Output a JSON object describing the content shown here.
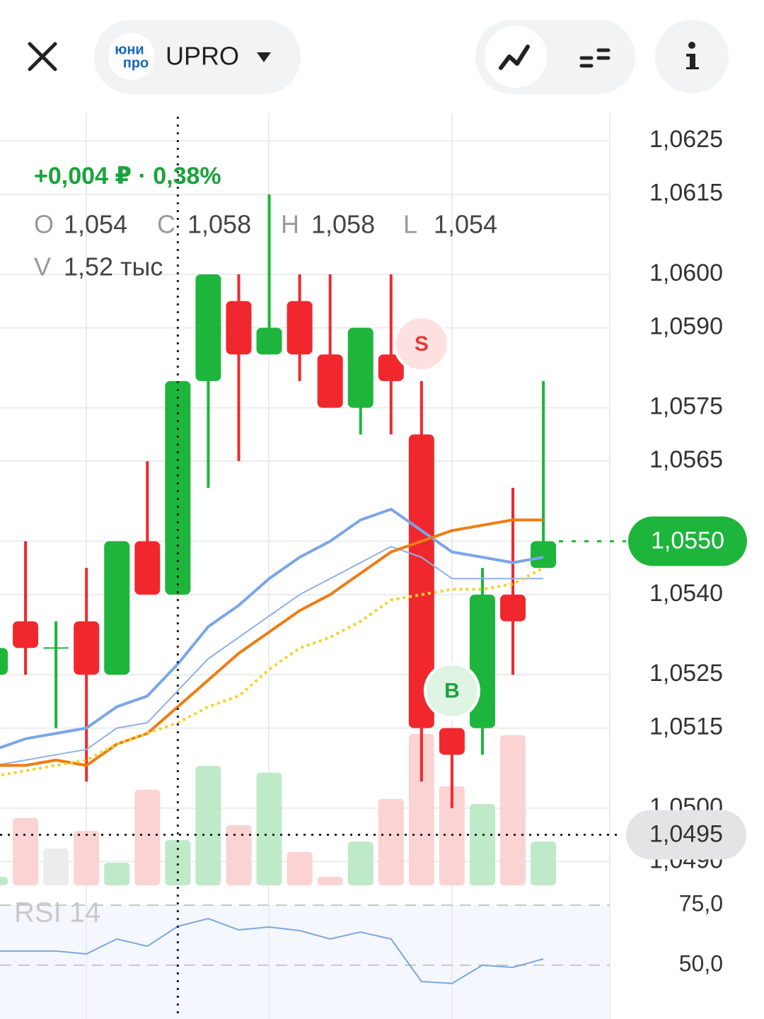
{
  "header": {
    "logo_top": "юни",
    "logo_bottom": "про",
    "ticker": "UPRO"
  },
  "chart_data": {
    "type": "candlestick",
    "change_label": "+0,004 ₽ · 0,38%",
    "legend": [
      {
        "key": "O",
        "value": "1,054"
      },
      {
        "key": "C",
        "value": "1,058"
      },
      {
        "key": "H",
        "value": "1,058"
      },
      {
        "key": "L",
        "value": "1,054"
      },
      {
        "key": "V",
        "value": "1,52 тыс"
      }
    ],
    "open": [
      1.0525,
      1.0535,
      1.053,
      1.0535,
      1.0525,
      1.055,
      1.054,
      1.058,
      1.0595,
      1.0585,
      1.0595,
      1.0585,
      1.0575,
      1.0585,
      1.057,
      1.0515,
      1.0515,
      1.054,
      1.0545
    ],
    "high": [
      1.053,
      1.055,
      1.0535,
      1.0545,
      1.055,
      1.0565,
      1.058,
      1.06,
      1.06,
      1.0615,
      1.06,
      1.06,
      1.059,
      1.06,
      1.058,
      1.0515,
      1.0545,
      1.056,
      1.058
    ],
    "low": [
      1.0525,
      1.0525,
      1.0515,
      1.0505,
      1.0525,
      1.054,
      1.054,
      1.056,
      1.0565,
      1.0585,
      1.058,
      1.0575,
      1.057,
      1.057,
      1.0505,
      1.05,
      1.051,
      1.0525,
      1.0545
    ],
    "close": [
      1.053,
      1.053,
      1.053,
      1.0525,
      1.055,
      1.054,
      1.058,
      1.06,
      1.0585,
      1.059,
      1.0585,
      1.0575,
      1.059,
      1.058,
      1.0515,
      1.051,
      1.054,
      1.0535,
      1.055
    ],
    "volume": [
      0.29,
      2.26,
      1.24,
      1.83,
      0.76,
      3.21,
      1.52,
      4.01,
      2.02,
      3.78,
      1.12,
      0.29,
      1.47,
      2.9,
      5.08,
      3.33,
      2.73,
      5.04,
      1.47
    ],
    "up_color": "#1db53b",
    "down_color": "#f0282d",
    "up_volume_color": "#bfeac8",
    "down_volume_color": "#fbd3d3",
    "flat_volume_color": "#ececec",
    "moving_averages": [
      {
        "color": "#7aa6e8",
        "width": 4,
        "style": "solid",
        "values": [
          1.0511,
          1.0513,
          1.0514,
          1.0515,
          1.0519,
          1.0521,
          1.0527,
          1.0534,
          1.0538,
          1.0543,
          1.0547,
          1.055,
          1.0554,
          1.0556,
          1.0552,
          1.0548,
          1.0547,
          1.0546,
          1.0547
        ]
      },
      {
        "color": "#8fb1e6",
        "width": 2,
        "style": "solid",
        "values": [
          1.0508,
          1.0509,
          1.051,
          1.0511,
          1.0515,
          1.0516,
          1.0522,
          1.0528,
          1.0532,
          1.0536,
          1.054,
          1.0543,
          1.0546,
          1.0549,
          1.0547,
          1.0543,
          1.0543,
          1.0543,
          1.0543
        ]
      },
      {
        "color": "#f07c12",
        "width": 4,
        "style": "solid",
        "values": [
          1.0508,
          1.0508,
          1.0509,
          1.0508,
          1.0512,
          1.0514,
          1.0519,
          1.0524,
          1.0529,
          1.0533,
          1.0537,
          1.054,
          1.0544,
          1.0548,
          1.055,
          1.0552,
          1.0553,
          1.0554,
          1.0554
        ]
      },
      {
        "color": "#f2d32c",
        "width": 4,
        "style": "dotted",
        "values": [
          1.0506,
          1.0507,
          1.0508,
          1.0509,
          1.0512,
          1.0514,
          1.0516,
          1.0519,
          1.0521,
          1.0526,
          1.053,
          1.0532,
          1.0535,
          1.0539,
          1.054,
          1.0541,
          1.0541,
          1.0542,
          1.0545
        ]
      }
    ],
    "ylim": [
      1.04858,
      1.06302
    ],
    "yticks": [
      {
        "value": 1.0625,
        "label": "1,0625"
      },
      {
        "value": 1.0615,
        "label": "1,0615"
      },
      {
        "value": 1.06,
        "label": "1,0600"
      },
      {
        "value": 1.059,
        "label": "1,0590"
      },
      {
        "value": 1.0575,
        "label": "1,0575"
      },
      {
        "value": 1.0565,
        "label": "1,0565"
      },
      {
        "value": 1.055,
        "label": "1,0550"
      },
      {
        "value": 1.054,
        "label": "1,0540"
      },
      {
        "value": 1.0525,
        "label": "1,0525"
      },
      {
        "value": 1.0515,
        "label": "1,0515"
      },
      {
        "value": 1.05,
        "label": "1,0500"
      },
      {
        "value": 1.049,
        "label": "1,0490"
      }
    ],
    "grid": true,
    "last_price": {
      "value": 1.055,
      "label": "1,0550"
    },
    "crosshair": {
      "index": 6,
      "value": 1.0495,
      "label": "1,0495"
    },
    "signals": [
      {
        "label": "S",
        "x": 14,
        "value": 1.0587,
        "color": "#e53935",
        "background": "#fde1e1"
      },
      {
        "label": "B",
        "x": 15,
        "value": 1.0522,
        "color": "#1aa33a",
        "background": "#dff4e3"
      }
    ],
    "rsi": {
      "title": "RSI 14",
      "color": "#7ba7e0",
      "values": [
        55.9,
        55.9,
        55.9,
        54.7,
        60.9,
        57.9,
        66.2,
        69.4,
        64.7,
        65.9,
        64.4,
        60.9,
        63.8,
        60.9,
        43.2,
        42.4,
        50.0,
        49.1,
        52.6
      ],
      "ylim": [
        27.6,
        75
      ],
      "yticks": [
        {
          "value": 75,
          "label": "75,0"
        },
        {
          "value": 50,
          "label": "50,0"
        }
      ]
    }
  }
}
